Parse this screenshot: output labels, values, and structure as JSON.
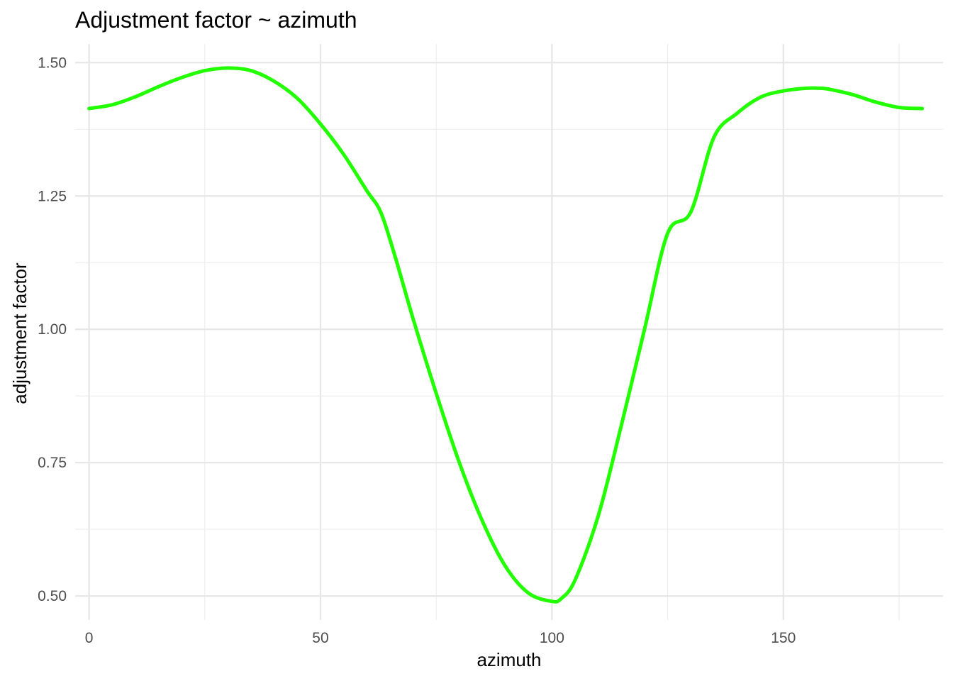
{
  "chart_data": {
    "type": "line",
    "title": "Adjustment factor ~ azimuth",
    "xlabel": "azimuth",
    "ylabel": "adjustment factor",
    "xlim": [
      -3,
      184.5
    ],
    "ylim": [
      0.455,
      1.535
    ],
    "x_ticks": [
      0,
      50,
      100,
      150
    ],
    "x_tick_labels": [
      "0",
      "50",
      "100",
      "150"
    ],
    "y_ticks": [
      0.5,
      0.75,
      1.0,
      1.25,
      1.5
    ],
    "y_tick_labels": [
      "0.50",
      "0.75",
      "1.00",
      "1.25",
      "1.50"
    ],
    "x_minor": [
      25,
      75,
      125,
      175
    ],
    "y_minor": [
      0.625,
      0.875,
      1.125,
      1.375
    ],
    "grid": true,
    "legend": "none",
    "line_color": "#22ff00",
    "series": [
      {
        "x": [
          0,
          5,
          10,
          15,
          20,
          25,
          30,
          35,
          40,
          45,
          50,
          55,
          60,
          63,
          66,
          70,
          75,
          80,
          85,
          90,
          95,
          100,
          102,
          105,
          110,
          115,
          120,
          125,
          130,
          135,
          140,
          145,
          150,
          155,
          158,
          160,
          165,
          170,
          175,
          180
        ],
        "y": [
          1.414,
          1.421,
          1.436,
          1.455,
          1.472,
          1.485,
          1.49,
          1.485,
          1.465,
          1.433,
          1.385,
          1.328,
          1.26,
          1.22,
          1.14,
          1.02,
          0.88,
          0.75,
          0.64,
          0.555,
          0.505,
          0.49,
          0.495,
          0.53,
          0.65,
          0.82,
          1.0,
          1.18,
          1.22,
          1.36,
          1.405,
          1.435,
          1.447,
          1.452,
          1.452,
          1.45,
          1.44,
          1.426,
          1.416,
          1.414
        ]
      }
    ]
  }
}
